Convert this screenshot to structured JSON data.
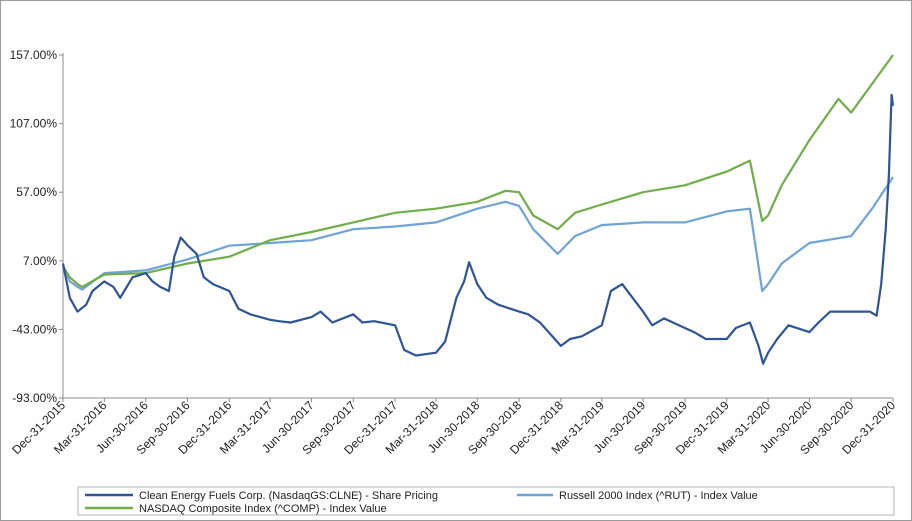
{
  "chart_data": {
    "type": "line",
    "title": "",
    "xlabel": "",
    "ylabel": "",
    "ylim": [
      -93,
      157
    ],
    "y_ticks": [
      157,
      107,
      57,
      7,
      -43,
      -93
    ],
    "y_tick_labels": [
      "157.00%",
      "107.00%",
      "57.00%",
      "7.00%",
      "-43.00%",
      "-93.00%"
    ],
    "x_tick_labels": [
      "Dec-31-2015",
      "Mar-31-2016",
      "Jun-30-2016",
      "Sep-30-2016",
      "Dec-31-2016",
      "Mar-31-2017",
      "Jun-30-2017",
      "Sep-30-2017",
      "Dec-31-2017",
      "Mar-31-2018",
      "Jun-30-2018",
      "Sep-30-2018",
      "Dec-31-2018",
      "Mar-31-2019",
      "Jun-30-2019",
      "Sep-30-2019",
      "Dec-31-2019",
      "Mar-31-2020",
      "Jun-30-2020",
      "Sep-30-2020",
      "Dec-31-2020"
    ],
    "x_date_range": [
      "Dec-31-2015",
      "Dec-31-2020"
    ],
    "grid": false,
    "legend_position": "bottom",
    "series": [
      {
        "name": "Clean Energy Fuels Corp. (NasdaqGS:CLNE) - Share Pricing",
        "color": "#2e5596",
        "x": [
          "Dec-31-2015",
          "Jan-15-2016",
          "Feb-01-2016",
          "Feb-20-2016",
          "Mar-05-2016",
          "Mar-31-2016",
          "Apr-20-2016",
          "May-05-2016",
          "Jun-01-2016",
          "Jun-30-2016",
          "Jul-15-2016",
          "Aug-01-2016",
          "Aug-20-2016",
          "Sep-01-2016",
          "Sep-15-2016",
          "Oct-01-2016",
          "Oct-20-2016",
          "Nov-05-2016",
          "Nov-25-2016",
          "Dec-31-2016",
          "Jan-20-2017",
          "Feb-15-2017",
          "Mar-31-2017",
          "Apr-20-2017",
          "May-15-2017",
          "Jun-30-2017",
          "Jul-20-2017",
          "Aug-15-2017",
          "Sep-30-2017",
          "Oct-20-2017",
          "Nov-15-2017",
          "Dec-31-2017",
          "Jan-20-2018",
          "Feb-15-2018",
          "Mar-31-2018",
          "Apr-20-2018",
          "May-15-2018",
          "Jun-01-2018",
          "Jun-12-2018",
          "Jun-30-2018",
          "Jul-20-2018",
          "Aug-15-2018",
          "Sep-30-2018",
          "Oct-20-2018",
          "Nov-15-2018",
          "Dec-31-2018",
          "Jan-20-2019",
          "Feb-15-2019",
          "Mar-31-2019",
          "Apr-20-2019",
          "May-15-2019",
          "Jun-30-2019",
          "Jul-20-2019",
          "Aug-15-2019",
          "Sep-30-2019",
          "Oct-20-2019",
          "Nov-15-2019",
          "Dec-31-2019",
          "Jan-20-2020",
          "Feb-20-2020",
          "Mar-10-2020",
          "Mar-20-2020",
          "Mar-31-2020",
          "Apr-20-2020",
          "May-15-2020",
          "Jun-30-2020",
          "Jul-20-2020",
          "Aug-15-2020",
          "Sep-30-2020",
          "Oct-20-2020",
          "Nov-10-2020",
          "Nov-25-2020",
          "Dec-05-2020",
          "Dec-15-2020",
          "Dec-22-2020",
          "Dec-28-2020",
          "Dec-31-2020"
        ],
        "values": [
          5,
          -20,
          -30,
          -25,
          -15,
          -8,
          -12,
          -20,
          -5,
          -2,
          -8,
          -12,
          -15,
          10,
          24,
          18,
          12,
          -5,
          -10,
          -15,
          -28,
          -32,
          -36,
          -37,
          -38,
          -34,
          -30,
          -38,
          -32,
          -38,
          -37,
          -40,
          -58,
          -62,
          -60,
          -52,
          -20,
          -8,
          6,
          -10,
          -20,
          -25,
          -30,
          -32,
          -38,
          -55,
          -50,
          -48,
          -40,
          -15,
          -10,
          -30,
          -40,
          -35,
          -42,
          -45,
          -50,
          -50,
          -42,
          -38,
          -55,
          -68,
          -60,
          -50,
          -40,
          -45,
          -38,
          -30,
          -30,
          -30,
          -30,
          -33,
          -10,
          30,
          70,
          128,
          120
        ]
      },
      {
        "name": "Russell 2000 Index (^RUT) - Index Value",
        "color": "#6ea4d8",
        "x": [
          "Dec-31-2015",
          "Jan-15-2016",
          "Feb-01-2016",
          "Feb-11-2016",
          "Mar-31-2016",
          "Jun-30-2016",
          "Sep-30-2016",
          "Dec-31-2016",
          "Mar-31-2017",
          "Jun-30-2017",
          "Sep-30-2017",
          "Dec-31-2017",
          "Mar-31-2018",
          "Jun-30-2018",
          "Aug-31-2018",
          "Sep-30-2018",
          "Oct-31-2018",
          "Dec-24-2018",
          "Jan-31-2019",
          "Mar-31-2019",
          "Jun-30-2019",
          "Sep-30-2019",
          "Dec-31-2019",
          "Feb-20-2020",
          "Mar-18-2020",
          "Mar-31-2020",
          "Apr-30-2020",
          "Jun-30-2020",
          "Sep-30-2020",
          "Nov-15-2020",
          "Dec-31-2020"
        ],
        "values": [
          3,
          -8,
          -12,
          -14,
          -2,
          0,
          8,
          18,
          20,
          22,
          30,
          32,
          35,
          45,
          50,
          47,
          30,
          12,
          25,
          33,
          35,
          35,
          43,
          45,
          -15,
          -10,
          5,
          20,
          25,
          45,
          68
        ]
      },
      {
        "name": "NASDAQ Composite Index (^COMP) - Index Value",
        "color": "#6fae48",
        "x": [
          "Dec-31-2015",
          "Jan-15-2016",
          "Feb-01-2016",
          "Feb-11-2016",
          "Mar-31-2016",
          "Jun-30-2016",
          "Sep-30-2016",
          "Dec-31-2016",
          "Mar-31-2017",
          "Jun-30-2017",
          "Sep-30-2017",
          "Dec-31-2017",
          "Mar-31-2018",
          "Jun-30-2018",
          "Aug-31-2018",
          "Sep-30-2018",
          "Oct-31-2018",
          "Dec-24-2018",
          "Jan-31-2019",
          "Mar-31-2019",
          "Jun-30-2019",
          "Sep-30-2019",
          "Dec-31-2019",
          "Feb-20-2020",
          "Mar-18-2020",
          "Mar-31-2020",
          "Apr-30-2020",
          "Jun-30-2020",
          "Sep-02-2020",
          "Sep-30-2020",
          "Dec-31-2020"
        ],
        "values": [
          3,
          -5,
          -10,
          -12,
          -3,
          -2,
          5,
          10,
          22,
          28,
          35,
          42,
          45,
          50,
          58,
          57,
          40,
          30,
          42,
          48,
          57,
          62,
          72,
          80,
          36,
          40,
          62,
          95,
          125,
          115,
          157
        ]
      }
    ]
  }
}
